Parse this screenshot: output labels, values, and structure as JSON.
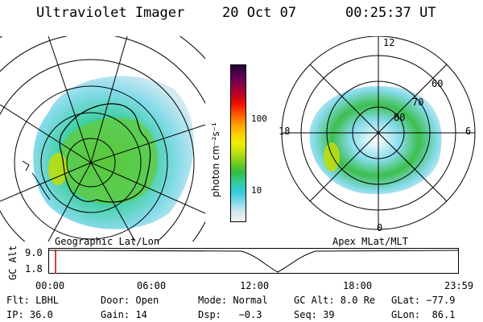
{
  "header": {
    "instrument": "Ultraviolet Imager",
    "date": "20 Oct 07",
    "time": "00:25:37 UT"
  },
  "left_panel": {
    "caption": "Geographic Lat/Lon"
  },
  "right_panel": {
    "caption": "Apex MLat/MLT",
    "lat_labels": [
      "60",
      "70",
      "80"
    ],
    "mlt_labels": {
      "top": "12",
      "left": "18",
      "right": "6",
      "bottom": "0"
    }
  },
  "colorbar": {
    "unit_label": "photon cm⁻²s⁻¹",
    "tick_labels": [
      "100",
      "10"
    ],
    "scale": "log",
    "colors": [
      "#f2f2f2",
      "#cfe8f0",
      "#7fd9e8",
      "#33ccdd",
      "#33cc99",
      "#33bb44",
      "#77cc22",
      "#bbdd11",
      "#eeee00",
      "#ffcc00",
      "#ff9900",
      "#ff5500",
      "#ee1100",
      "#bb0022",
      "#880044",
      "#550055",
      "#220033"
    ]
  },
  "timeline": {
    "ylabel": "GC Alt",
    "y_ticks": [
      "9.0",
      "1.8"
    ],
    "x_ticks": [
      "00:00",
      "06:00",
      "12:00",
      "18:00",
      "23:59"
    ],
    "marker_color": "#cc0000",
    "marker_time": "00:25:37"
  },
  "footer": {
    "row1": [
      "Flt: LBHL",
      "Door: Open",
      "Mode: Normal",
      "GC Alt: 8.0 Re",
      "GLat: −77.9"
    ],
    "row2": [
      "IP: 36.0",
      "Gain: 14",
      "Dsp:   −0.3",
      "Seq: 39",
      "GLon:  86.1"
    ]
  }
}
